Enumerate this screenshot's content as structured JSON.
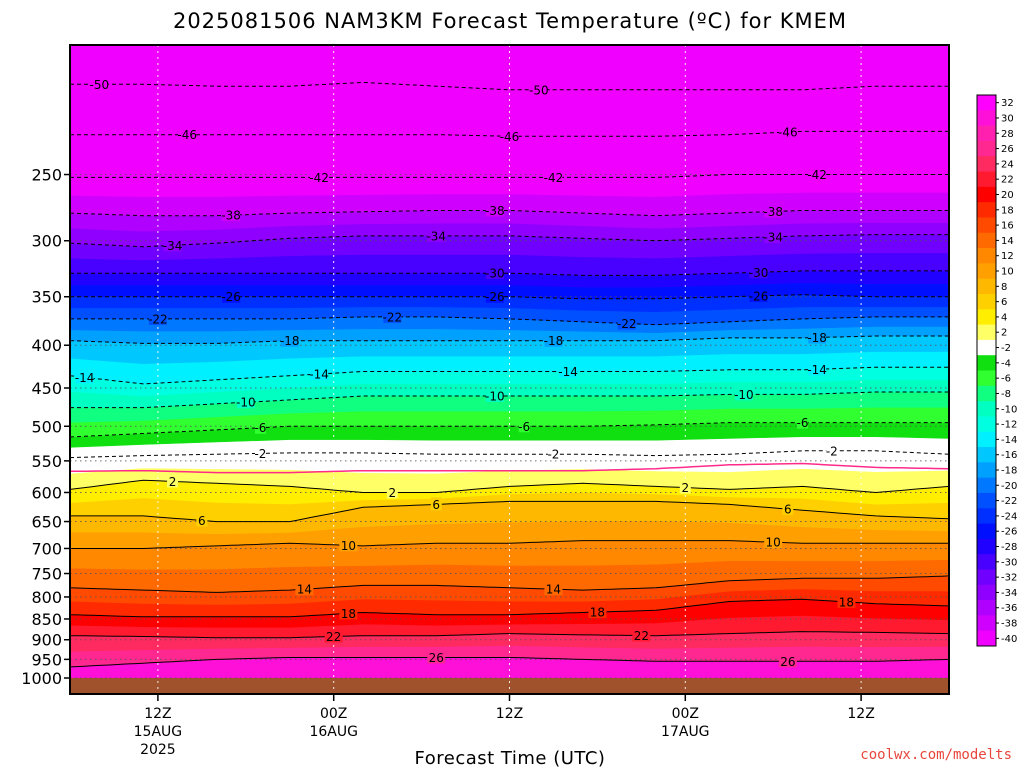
{
  "header": {
    "title": "2025081506 NAM3KM Forecast Temperature (ºC) for KMEM",
    "credit": "coolwx.com/modelts"
  },
  "chart_data": {
    "type": "heatmap",
    "title": "2025081506 NAM3KM Forecast Temperature (ºC) for KMEM",
    "xlabel": "Forecast Time (UTC)",
    "ylabel": "",
    "y_scale": "log-pressure",
    "y_reversed": true,
    "ylim": [
      1000,
      175
    ],
    "xlim_hours": [
      6,
      66
    ],
    "y_ticks": [
      250,
      300,
      350,
      400,
      450,
      500,
      550,
      600,
      650,
      700,
      750,
      800,
      850,
      900,
      950,
      1000
    ],
    "x_ticks": [
      {
        "hour": 12,
        "lines": [
          "12Z",
          "15AUG",
          "2025"
        ]
      },
      {
        "hour": 24,
        "lines": [
          "00Z",
          "16AUG"
        ]
      },
      {
        "hour": 36,
        "lines": [
          "12Z"
        ]
      },
      {
        "hour": 48,
        "lines": [
          "00Z",
          "17AUG"
        ]
      },
      {
        "hour": 60,
        "lines": [
          "12Z"
        ]
      }
    ],
    "grid": "dotted",
    "surface_color": "#a0522d",
    "colorbar": {
      "labels": [
        "32",
        "30",
        "28",
        "26",
        "24",
        "22",
        "20",
        "18",
        "16",
        "14",
        "12",
        "10",
        "8",
        "6",
        "4",
        "2",
        "-2",
        "-4",
        "-6",
        "-8",
        "-10",
        "-12",
        "-14",
        "-16",
        "-18",
        "-20",
        "-22",
        "-24",
        "-26",
        "-28",
        "-30",
        "-32",
        "-34",
        "-36",
        "-38",
        "-40"
      ],
      "colors": [
        "#ff00ff",
        "#ff10d8",
        "#ff20b0",
        "#ff2890",
        "#ff2a60",
        "#ff1a30",
        "#ff0000",
        "#ff2a00",
        "#ff4a00",
        "#ff6a00",
        "#ff8800",
        "#ffa000",
        "#ffb800",
        "#ffd000",
        "#ffee00",
        "#ffff66",
        "#ffffff",
        "#10e010",
        "#30ff30",
        "#10ff80",
        "#00ffc0",
        "#00ffe0",
        "#00f0ff",
        "#00c8ff",
        "#00a0ff",
        "#0078ff",
        "#0050ff",
        "#0030ff",
        "#0010ff",
        "#2000ff",
        "#4800ff",
        "#7000ff",
        "#9000ff",
        "#b000ff",
        "#d000ff",
        "#f000ff"
      ]
    },
    "contours": [
      {
        "value": 2,
        "pressure": [
          595,
          580,
          585,
          590,
          600,
          600,
          590,
          585,
          590,
          595,
          590,
          600,
          590
        ],
        "labels_at_hours": [
          13,
          28,
          48
        ]
      },
      {
        "value": 6,
        "pressure": [
          640,
          640,
          650,
          650,
          625,
          620,
          615,
          615,
          615,
          620,
          630,
          640,
          645
        ],
        "labels_at_hours": [
          15,
          31,
          55
        ]
      },
      {
        "value": 10,
        "pressure": [
          700,
          700,
          695,
          690,
          695,
          690,
          690,
          685,
          685,
          685,
          690,
          690,
          690
        ],
        "labels_at_hours": [
          25,
          54
        ]
      },
      {
        "value": 14,
        "pressure": [
          780,
          785,
          790,
          785,
          775,
          775,
          780,
          785,
          780,
          765,
          760,
          760,
          755
        ],
        "labels_at_hours": [
          22,
          39
        ]
      },
      {
        "value": 18,
        "pressure": [
          840,
          845,
          845,
          845,
          835,
          840,
          840,
          835,
          830,
          810,
          805,
          815,
          820
        ],
        "labels_at_hours": [
          25,
          42,
          59
        ]
      },
      {
        "value": 22,
        "pressure": [
          890,
          892,
          895,
          895,
          890,
          890,
          885,
          888,
          890,
          885,
          880,
          882,
          885
        ],
        "labels_at_hours": [
          24,
          45
        ]
      },
      {
        "value": 26,
        "pressure": [
          970,
          960,
          950,
          945,
          945,
          945,
          945,
          950,
          955,
          955,
          955,
          955,
          950
        ],
        "labels_at_hours": [
          31,
          55
        ]
      },
      {
        "value": -2,
        "pressure": [
          545,
          542,
          540,
          538,
          538,
          540,
          540,
          540,
          542,
          540,
          535,
          535,
          540
        ],
        "labels_at_hours": [
          19,
          39,
          58
        ]
      },
      {
        "value": -6,
        "pressure": [
          515,
          510,
          505,
          500,
          500,
          500,
          500,
          500,
          498,
          495,
          495,
          495,
          495
        ],
        "labels_at_hours": [
          19,
          37,
          56
        ]
      },
      {
        "value": -10,
        "pressure": [
          475,
          475,
          470,
          465,
          460,
          460,
          460,
          460,
          460,
          458,
          458,
          455,
          455
        ],
        "labels_at_hours": [
          18,
          35,
          52
        ]
      },
      {
        "value": -14,
        "pressure": [
          435,
          445,
          440,
          435,
          430,
          430,
          430,
          430,
          430,
          428,
          428,
          425,
          425
        ],
        "labels_at_hours": [
          7,
          23,
          40,
          57
        ]
      },
      {
        "value": -18,
        "pressure": [
          395,
          398,
          398,
          395,
          395,
          395,
          395,
          395,
          395,
          392,
          392,
          390,
          390
        ],
        "labels_at_hours": [
          21,
          39,
          57
        ]
      },
      {
        "value": -22,
        "pressure": [
          372,
          372,
          372,
          372,
          370,
          370,
          372,
          375,
          378,
          375,
          372,
          370,
          370
        ],
        "labels_at_hours": [
          12,
          28,
          44
        ]
      },
      {
        "value": -26,
        "pressure": [
          350,
          350,
          350,
          350,
          350,
          350,
          350,
          352,
          352,
          350,
          348,
          350,
          350
        ],
        "labels_at_hours": [
          17,
          35,
          53
        ]
      },
      {
        "value": -30,
        "pressure": [
          328,
          328,
          328,
          328,
          328,
          328,
          328,
          330,
          330,
          328,
          326,
          326,
          326
        ],
        "labels_at_hours": [
          35,
          53
        ]
      },
      {
        "value": -34,
        "pressure": [
          302,
          305,
          302,
          298,
          296,
          296,
          296,
          298,
          300,
          298,
          296,
          295,
          295
        ],
        "labels_at_hours": [
          13,
          31,
          54
        ]
      },
      {
        "value": -38,
        "pressure": [
          278,
          280,
          280,
          278,
          277,
          276,
          276,
          278,
          280,
          278,
          276,
          276,
          276
        ],
        "labels_at_hours": [
          17,
          35,
          54
        ]
      },
      {
        "value": -42,
        "pressure": [
          252,
          252,
          252,
          252,
          252,
          252,
          252,
          252,
          252,
          250,
          250,
          250,
          250
        ],
        "labels_at_hours": [
          23,
          39,
          57
        ]
      },
      {
        "value": -46,
        "pressure": [
          224,
          224,
          224,
          224,
          224,
          224,
          225,
          225,
          225,
          224,
          222,
          222,
          222
        ],
        "labels_at_hours": [
          14,
          36,
          55
        ]
      },
      {
        "value": -50,
        "pressure": [
          195,
          195,
          196,
          196,
          194,
          196,
          198,
          198,
          198,
          198,
          198,
          196,
          196
        ],
        "labels_at_hours": [
          8,
          38
        ]
      }
    ],
    "contour_hours": [
      6,
      11,
      16,
      21,
      26,
      31,
      36,
      41,
      46,
      51,
      56,
      61,
      66
    ],
    "freezing_line": {
      "color": "#ff2a8a",
      "pressure": [
        566,
        565,
        568,
        568,
        565,
        565,
        565,
        565,
        562,
        556,
        554,
        560,
        562
      ]
    }
  }
}
